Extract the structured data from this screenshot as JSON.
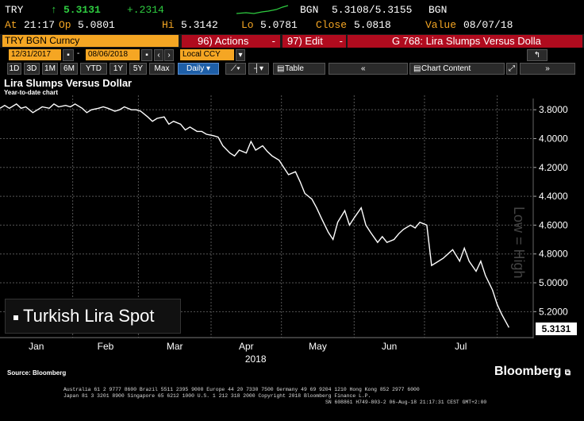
{
  "quote": {
    "ticker": "TRY",
    "last": "5.3131",
    "change": "+.2314",
    "source": "BGN",
    "bid_ask": "5.3108/5.3155",
    "source2": "BGN",
    "at_label": "At",
    "time": "21:17",
    "open_label": "Op",
    "open": "5.0801",
    "high_label": "Hi",
    "high": "5.3142",
    "low_label": "Lo",
    "low": "5.0781",
    "close_label": "Close",
    "close": "5.0818",
    "value_label": "Value",
    "value_date": "08/07/18",
    "up_arrow": "↑"
  },
  "menu": {
    "security": "TRY BGN Curncy",
    "actions": "96) Actions",
    "edit": "97) Edit",
    "chart_title": "G 768: Lira Slumps Versus Dolla"
  },
  "toolbar": {
    "start_date": "12/31/2017",
    "end_date": "08/06/2018",
    "currency": "Local CCY",
    "periods": [
      "1D",
      "3D",
      "1M",
      "6M",
      "YTD",
      "1Y",
      "5Y",
      "Max"
    ],
    "frequency": "Daily",
    "table": "Table",
    "chart_content": "Chart Content"
  },
  "chart": {
    "title": "Lira Slumps Versus Dollar",
    "subtitle": "Year-to-date chart",
    "legend": "Turkish Lira Spot",
    "right_axis_label": "Low = High",
    "last_value_label": "5.3131",
    "source": "Source: Bloomberg",
    "brand": "Bloomberg"
  },
  "footer": {
    "line1": "Australia 61 2 9777 8600 Brazil 5511 2395 9000 Europe 44 20 7330 7500 Germany 49 69 9204 1210 Hong Kong 852 2977 6000",
    "line2": "Japan 81 3 3201 8900        Singapore 65 6212 1000        U.S. 1 212 318 2000        Copyright 2018 Bloomberg Finance L.P.",
    "line3": "SN 608861 H749-803-2 06-Aug-18 21:17:31 CEST GMT+2:00"
  },
  "colors": {
    "amber": "#f5a623",
    "green": "#2ecc40",
    "red_bar": "#b00b1e",
    "line": "#ffffff"
  },
  "chart_data": {
    "type": "line",
    "x_label": "2018",
    "months": [
      "Jan",
      "Feb",
      "Mar",
      "Apr",
      "May",
      "Jun",
      "Jul"
    ],
    "y_ticks": [
      3.8,
      4.0,
      4.2,
      4.4,
      4.6,
      4.8,
      5.0,
      5.2
    ],
    "y_tick_labels": [
      "3.8000",
      "4.0000",
      "4.2000",
      "4.4000",
      "4.6000",
      "4.8000",
      "5.0000",
      "5.2000"
    ],
    "y_inverted": true,
    "ylim": [
      3.7,
      5.38
    ],
    "xlim": [
      "2018-01-01",
      "2018-08-15"
    ],
    "series": [
      {
        "name": "Turkish Lira Spot",
        "x": [
          "2018-01-01",
          "2018-01-03",
          "2018-01-05",
          "2018-01-08",
          "2018-01-10",
          "2018-01-12",
          "2018-01-15",
          "2018-01-17",
          "2018-01-19",
          "2018-01-22",
          "2018-01-24",
          "2018-01-26",
          "2018-01-29",
          "2018-01-31",
          "2018-02-02",
          "2018-02-05",
          "2018-02-07",
          "2018-02-09",
          "2018-02-12",
          "2018-02-14",
          "2018-02-16",
          "2018-02-19",
          "2018-02-21",
          "2018-02-23",
          "2018-02-26",
          "2018-02-28",
          "2018-03-02",
          "2018-03-05",
          "2018-03-07",
          "2018-03-09",
          "2018-03-12",
          "2018-03-14",
          "2018-03-16",
          "2018-03-19",
          "2018-03-21",
          "2018-03-23",
          "2018-03-26",
          "2018-03-28",
          "2018-03-30",
          "2018-04-02",
          "2018-04-04",
          "2018-04-06",
          "2018-04-09",
          "2018-04-11",
          "2018-04-13",
          "2018-04-16",
          "2018-04-18",
          "2018-04-20",
          "2018-04-23",
          "2018-04-25",
          "2018-04-27",
          "2018-04-30",
          "2018-05-02",
          "2018-05-04",
          "2018-05-07",
          "2018-05-09",
          "2018-05-11",
          "2018-05-14",
          "2018-05-16",
          "2018-05-18",
          "2018-05-21",
          "2018-05-23",
          "2018-05-25",
          "2018-05-28",
          "2018-05-30",
          "2018-06-01",
          "2018-06-04",
          "2018-06-06",
          "2018-06-08",
          "2018-06-11",
          "2018-06-13",
          "2018-06-15",
          "2018-06-18",
          "2018-06-20",
          "2018-06-22",
          "2018-06-25",
          "2018-06-27",
          "2018-06-29",
          "2018-07-02",
          "2018-07-04",
          "2018-07-06",
          "2018-07-09",
          "2018-07-11",
          "2018-07-13",
          "2018-07-16",
          "2018-07-18",
          "2018-07-20",
          "2018-07-23",
          "2018-07-25",
          "2018-07-27",
          "2018-07-30",
          "2018-08-01",
          "2018-08-03",
          "2018-08-06"
        ],
        "y": [
          3.79,
          3.77,
          3.79,
          3.76,
          3.79,
          3.78,
          3.82,
          3.8,
          3.78,
          3.79,
          3.76,
          3.78,
          3.77,
          3.78,
          3.76,
          3.79,
          3.82,
          3.8,
          3.79,
          3.78,
          3.79,
          3.81,
          3.8,
          3.78,
          3.8,
          3.8,
          3.81,
          3.85,
          3.88,
          3.86,
          3.85,
          3.9,
          3.88,
          3.9,
          3.94,
          3.92,
          3.95,
          3.95,
          3.97,
          3.98,
          3.99,
          4.05,
          4.1,
          4.12,
          4.08,
          4.1,
          4.02,
          4.08,
          4.05,
          4.09,
          4.12,
          4.15,
          4.2,
          4.25,
          4.23,
          4.3,
          4.38,
          4.42,
          4.48,
          4.55,
          4.65,
          4.7,
          4.58,
          4.5,
          4.6,
          4.55,
          4.48,
          4.6,
          4.65,
          4.72,
          4.68,
          4.72,
          4.7,
          4.66,
          4.63,
          4.6,
          4.62,
          4.58,
          4.6,
          4.88,
          4.86,
          4.83,
          4.8,
          4.77,
          4.85,
          4.76,
          4.85,
          4.92,
          4.85,
          4.95,
          5.05,
          5.15,
          5.22,
          5.31
        ]
      }
    ]
  }
}
